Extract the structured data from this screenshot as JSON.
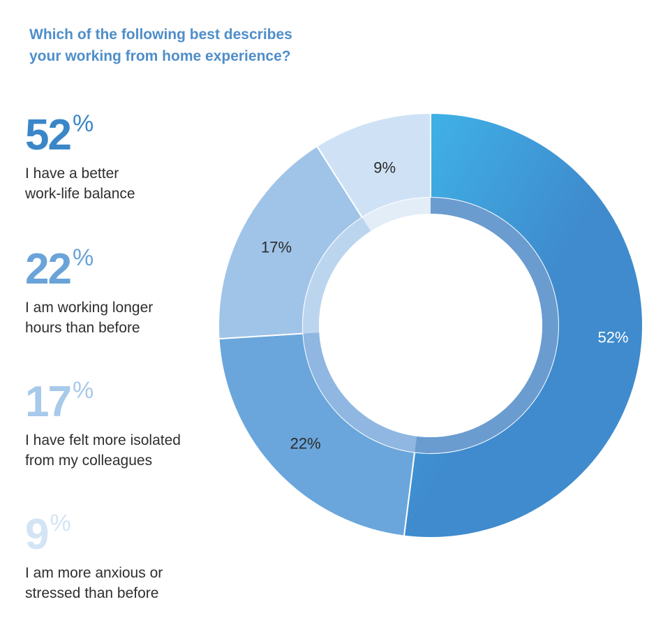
{
  "title": {
    "line1": "Which of the following best describes",
    "line2": "your working from home experience?"
  },
  "chart_data": {
    "type": "pie",
    "style": "donut",
    "title": "Which of the following best describes your working from home experience?",
    "unit": "%",
    "categories": [
      "I have a better work-life balance",
      "I am working longer hours than before",
      "I have felt more isolated from my colleagues",
      "I am more anxious or stressed than before"
    ],
    "values": [
      52,
      22,
      17,
      9
    ],
    "colors": [
      "#3f8bcd",
      "#6aa6db",
      "#a0c4e8",
      "#cfe2f5"
    ],
    "slice_labels": [
      "52%",
      "22%",
      "17%",
      "9%"
    ]
  },
  "legend": [
    {
      "value": "52",
      "suffix": "%",
      "line1": "I have a better",
      "line2": "work-life balance",
      "color": "#3a86c8"
    },
    {
      "value": "22",
      "suffix": "%",
      "line1": "I am working longer",
      "line2": "hours than before",
      "color": "#6aa3d8"
    },
    {
      "value": "17",
      "suffix": "%",
      "line1": "I have felt more isolated",
      "line2": "from my colleagues",
      "color": "#a7c9ea"
    },
    {
      "value": "9",
      "suffix": "%",
      "line1": "I am more anxious or",
      "line2": "stressed than before",
      "color": "#d3e4f5"
    }
  ]
}
